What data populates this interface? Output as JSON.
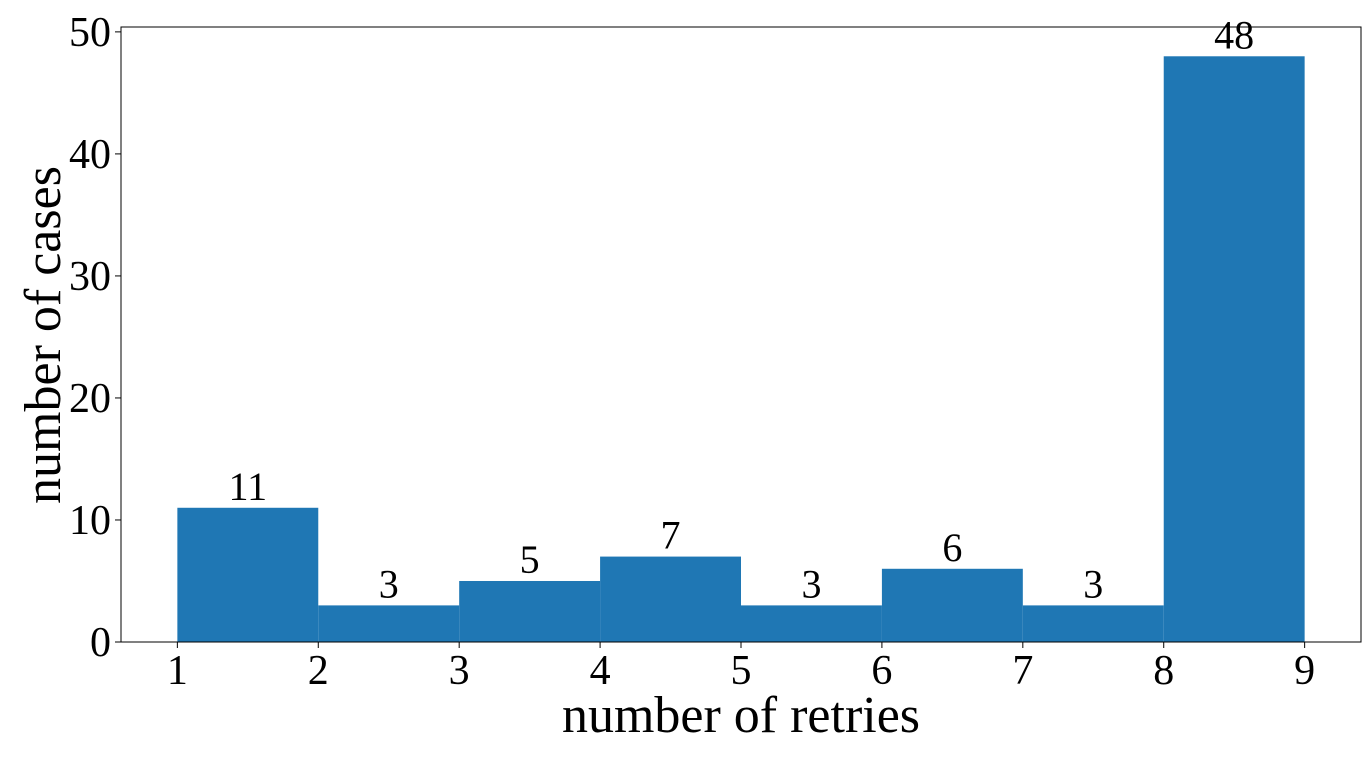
{
  "chart_data": {
    "type": "histogram",
    "xlabel": "number of retries",
    "ylabel": "number of cases",
    "bins": [
      1,
      2,
      3,
      4,
      5,
      6,
      7,
      8,
      9
    ],
    "values": [
      11,
      3,
      5,
      7,
      3,
      6,
      3,
      48
    ],
    "color": "#1f77b4",
    "xlim": [
      0.6,
      9.4
    ],
    "ylim": [
      0,
      50.4
    ],
    "xticks": [
      1,
      2,
      3,
      4,
      5,
      6,
      7,
      8,
      9
    ],
    "yticks": [
      0,
      10,
      20,
      30,
      40,
      50
    ],
    "show_value_labels": true
  }
}
